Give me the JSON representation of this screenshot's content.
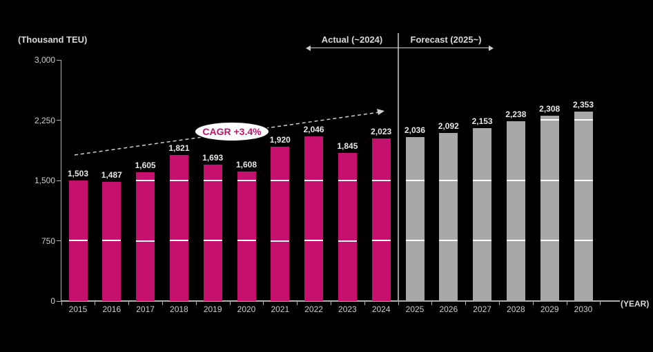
{
  "unit_label": "(Thousand TEU)",
  "year_axis_label": "(YEAR)",
  "header": {
    "actual_label": "Actual (~2024)",
    "forecast_label": "Forecast (2025~)"
  },
  "cagr_label": "CAGR +3.4%",
  "colors": {
    "background": "#000000",
    "actual_bar": "#c5106e",
    "forecast_bar": "#a8a8a8",
    "text": "#cfcfcf",
    "gridline": "#ffffff",
    "axis": "#b0b0b0",
    "cagr_text": "#c5106e"
  },
  "chart_data": {
    "type": "bar",
    "title": "",
    "ylabel": "(Thousand TEU)",
    "xlabel": "(YEAR)",
    "ylim": [
      0,
      3000
    ],
    "yticks": [
      0,
      750,
      1500,
      2250,
      3000
    ],
    "gridlines_visible_on_bars": true,
    "legend_position": "top",
    "categories": [
      "2015",
      "2016",
      "2017",
      "2018",
      "2019",
      "2020",
      "2021",
      "2022",
      "2023",
      "2024",
      "2025",
      "2026",
      "2027",
      "2028",
      "2029",
      "2030"
    ],
    "series": [
      {
        "name": "Actual (~2024)",
        "years": [
          "2015",
          "2016",
          "2017",
          "2018",
          "2019",
          "2020",
          "2021",
          "2022",
          "2023",
          "2024"
        ],
        "values": [
          1503,
          1487,
          1605,
          1821,
          1693,
          1608,
          1920,
          2046,
          1845,
          2023
        ]
      },
      {
        "name": "Forecast (2025~)",
        "years": [
          "2025",
          "2026",
          "2027",
          "2028",
          "2029",
          "2030"
        ],
        "values": [
          2036,
          2092,
          2153,
          2238,
          2308,
          2353
        ]
      }
    ],
    "annotations": [
      {
        "type": "trend-arrow",
        "label": "CAGR +3.4%",
        "from_year": "2015",
        "to_year": "2024"
      }
    ]
  }
}
